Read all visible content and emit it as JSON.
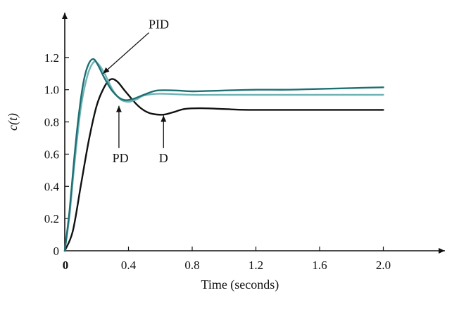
{
  "chart_data": {
    "type": "line",
    "title": "",
    "xlabel": "Time (seconds)",
    "ylabel": "c(t)",
    "xlim": [
      0,
      2.2
    ],
    "ylim": [
      0,
      1.4
    ],
    "xticks": [
      {
        "value": 0,
        "label": "0"
      },
      {
        "value": 0.4,
        "label": "0.4"
      },
      {
        "value": 0.8,
        "label": "0.8"
      },
      {
        "value": 1.2,
        "label": "1.2"
      },
      {
        "value": 1.6,
        "label": "1.6"
      },
      {
        "value": 2.0,
        "label": "2.0"
      }
    ],
    "yticks": [
      {
        "value": 0,
        "label": "0"
      },
      {
        "value": 0.2,
        "label": "0.2"
      },
      {
        "value": 0.4,
        "label": "0.4"
      },
      {
        "value": 0.6,
        "label": "0.6"
      },
      {
        "value": 0.8,
        "label": "0.8"
      },
      {
        "value": 1.0,
        "label": "1.0"
      },
      {
        "value": 1.2,
        "label": "1.2"
      }
    ],
    "grid": false,
    "series": [
      {
        "name": "PID",
        "color": "#1d6f73",
        "points": [
          [
            0,
            0
          ],
          [
            0.03,
            0.25
          ],
          [
            0.06,
            0.58
          ],
          [
            0.09,
            0.86
          ],
          [
            0.12,
            1.06
          ],
          [
            0.15,
            1.16
          ],
          [
            0.18,
            1.19
          ],
          [
            0.21,
            1.15
          ],
          [
            0.25,
            1.07
          ],
          [
            0.3,
            0.99
          ],
          [
            0.36,
            0.94
          ],
          [
            0.42,
            0.94
          ],
          [
            0.5,
            0.97
          ],
          [
            0.58,
            0.995
          ],
          [
            0.7,
            0.995
          ],
          [
            0.8,
            0.99
          ],
          [
            1.0,
            0.995
          ],
          [
            1.2,
            1.0
          ],
          [
            1.4,
            1.0
          ],
          [
            1.6,
            1.005
          ],
          [
            1.8,
            1.01
          ],
          [
            2.0,
            1.015
          ]
        ]
      },
      {
        "name": "PD",
        "color": "#6fb3b5",
        "points": [
          [
            0,
            0
          ],
          [
            0.03,
            0.22
          ],
          [
            0.06,
            0.53
          ],
          [
            0.1,
            0.88
          ],
          [
            0.14,
            1.08
          ],
          [
            0.18,
            1.17
          ],
          [
            0.21,
            1.16
          ],
          [
            0.25,
            1.1
          ],
          [
            0.3,
            1.0
          ],
          [
            0.35,
            0.94
          ],
          [
            0.4,
            0.925
          ],
          [
            0.45,
            0.94
          ],
          [
            0.5,
            0.965
          ],
          [
            0.6,
            0.975
          ],
          [
            0.8,
            0.968
          ],
          [
            1.0,
            0.968
          ],
          [
            1.5,
            0.968
          ],
          [
            2.0,
            0.968
          ]
        ]
      },
      {
        "name": "D",
        "color": "#111111",
        "points": [
          [
            0,
            0
          ],
          [
            0.05,
            0.12
          ],
          [
            0.1,
            0.4
          ],
          [
            0.15,
            0.68
          ],
          [
            0.2,
            0.9
          ],
          [
            0.25,
            1.02
          ],
          [
            0.29,
            1.065
          ],
          [
            0.33,
            1.05
          ],
          [
            0.38,
            0.99
          ],
          [
            0.45,
            0.91
          ],
          [
            0.5,
            0.87
          ],
          [
            0.55,
            0.85
          ],
          [
            0.62,
            0.845
          ],
          [
            0.68,
            0.86
          ],
          [
            0.75,
            0.88
          ],
          [
            0.85,
            0.885
          ],
          [
            1.0,
            0.88
          ],
          [
            1.15,
            0.875
          ],
          [
            1.5,
            0.875
          ],
          [
            2.0,
            0.875
          ]
        ]
      }
    ],
    "annotations": [
      {
        "text": "PID",
        "label_x": 0.59,
        "label_y": 1.38,
        "arrow_to": [
          0.24,
          1.1
        ]
      },
      {
        "text": "PD",
        "label_x": 0.35,
        "label_y": 0.55,
        "arrow_to": [
          0.34,
          0.9
        ]
      },
      {
        "text": "D",
        "label_x": 0.62,
        "label_y": 0.55,
        "arrow_to": [
          0.62,
          0.84
        ]
      }
    ]
  }
}
